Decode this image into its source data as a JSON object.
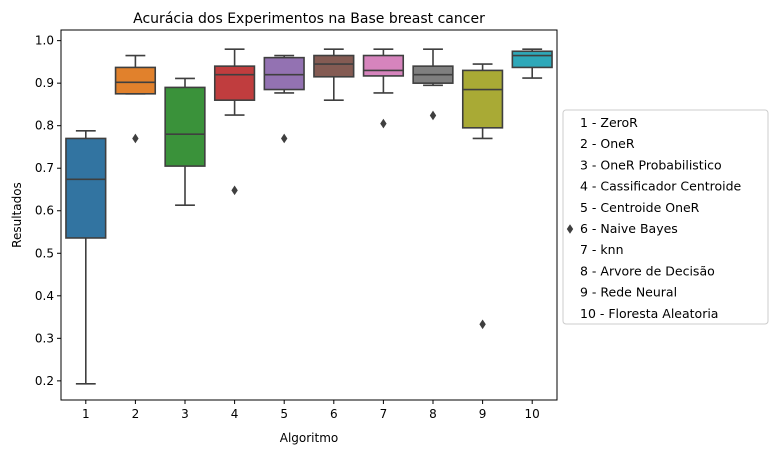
{
  "chart_data": {
    "type": "boxplot",
    "title": "Acurácia dos Experimentos na Base breast cancer",
    "xlabel": "Algoritmo",
    "ylabel": "Resultados",
    "ylim": [
      0.155,
      1.025
    ],
    "yticks": [
      0.2,
      0.3,
      0.4,
      0.5,
      0.6,
      0.7,
      0.8,
      0.9,
      1.0
    ],
    "ytick_labels": [
      "0.2",
      "0.3",
      "0.4",
      "0.5",
      "0.6",
      "0.7",
      "0.8",
      "0.9",
      "1.0"
    ],
    "categories": [
      "1",
      "2",
      "3",
      "4",
      "5",
      "6",
      "7",
      "8",
      "9",
      "10"
    ],
    "grid": false,
    "legend_position": "outside-right",
    "legend": [
      "1 - ZeroR",
      "2 - OneR",
      "3 - OneR Probabilistico",
      "4 - Cassificador Centroide",
      "5 - Centroide OneR",
      "6 - Naive Bayes",
      "7 - knn",
      "8 - Arvore de Decisão",
      "9 - Rede Neural",
      "10 - Floresta Aleatoria"
    ],
    "boxes": [
      {
        "category": "1",
        "color": "#3274a1",
        "whisker_low": 0.193,
        "q1": 0.536,
        "median": 0.674,
        "q3": 0.77,
        "whisker_high": 0.788,
        "outliers": []
      },
      {
        "category": "2",
        "color": "#e1812c",
        "whisker_low": 0.875,
        "q1": 0.875,
        "median": 0.902,
        "q3": 0.937,
        "whisker_high": 0.965,
        "outliers": [
          0.77
        ]
      },
      {
        "category": "3",
        "color": "#3a923a",
        "whisker_low": 0.613,
        "q1": 0.705,
        "median": 0.78,
        "q3": 0.89,
        "whisker_high": 0.911,
        "outliers": []
      },
      {
        "category": "4",
        "color": "#c03d3e",
        "whisker_low": 0.825,
        "q1": 0.86,
        "median": 0.92,
        "q3": 0.94,
        "whisker_high": 0.98,
        "outliers": [
          0.648
        ]
      },
      {
        "category": "5",
        "color": "#9372b2",
        "whisker_low": 0.877,
        "q1": 0.885,
        "median": 0.92,
        "q3": 0.96,
        "whisker_high": 0.965,
        "outliers": [
          0.77
        ]
      },
      {
        "category": "6",
        "color": "#845b53",
        "whisker_low": 0.86,
        "q1": 0.915,
        "median": 0.945,
        "q3": 0.965,
        "whisker_high": 0.98,
        "outliers": []
      },
      {
        "category": "7",
        "color": "#d684bd",
        "whisker_low": 0.877,
        "q1": 0.917,
        "median": 0.93,
        "q3": 0.965,
        "whisker_high": 0.98,
        "outliers": [
          0.805
        ]
      },
      {
        "category": "8",
        "color": "#7f7f7f",
        "whisker_low": 0.895,
        "q1": 0.9,
        "median": 0.92,
        "q3": 0.94,
        "whisker_high": 0.98,
        "outliers": [
          0.824
        ]
      },
      {
        "category": "9",
        "color": "#a9aa35",
        "whisker_low": 0.77,
        "q1": 0.795,
        "median": 0.885,
        "q3": 0.93,
        "whisker_high": 0.945,
        "outliers": [
          0.333
        ]
      },
      {
        "category": "10",
        "color": "#2ea8b9",
        "whisker_low": 0.912,
        "q1": 0.937,
        "median": 0.965,
        "q3": 0.975,
        "whisker_high": 0.98,
        "outliers": []
      }
    ]
  }
}
